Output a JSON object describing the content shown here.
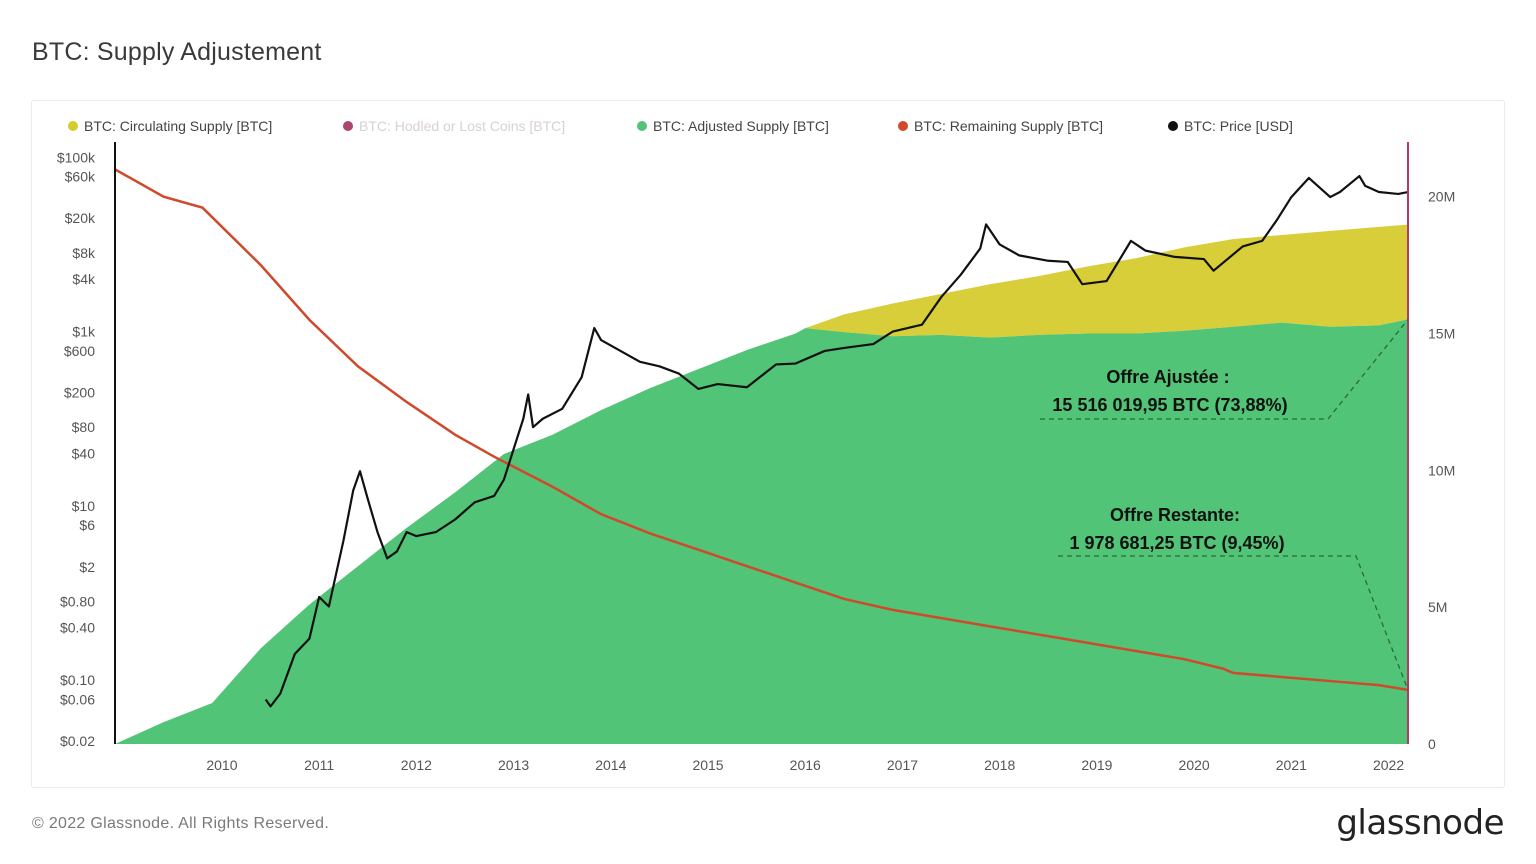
{
  "title": "BTC: Supply Adjustement",
  "footer": {
    "copyright": "© 2022 Glassnode. All Rights Reserved.",
    "logo_text": "glassnode"
  },
  "colors": {
    "circulating": "#d6cb2f",
    "hodled": "#a3325f",
    "adjusted": "#52c477",
    "remaining": "#cf4a2b",
    "price": "#111111",
    "right_axis": "#b23a6c"
  },
  "chart_data": {
    "type": "area",
    "legend_placement": "top",
    "grid": false,
    "legend": [
      {
        "name": "BTC: Circulating Supply [BTC]",
        "color": "#d6cb2f",
        "muted": false
      },
      {
        "name": "BTC: Hodled or Lost Coins [BTC]",
        "color": "#a3325f",
        "muted": true
      },
      {
        "name": "BTC: Adjusted Supply [BTC]",
        "color": "#52c477",
        "muted": false
      },
      {
        "name": "BTC: Remaining Supply [BTC]",
        "color": "#cf4a2b",
        "muted": false
      },
      {
        "name": "BTC: Price [USD]",
        "color": "#111111",
        "muted": false
      }
    ],
    "x_ticks": [
      "2010",
      "2011",
      "2012",
      "2013",
      "2014",
      "2015",
      "2016",
      "2017",
      "2018",
      "2019",
      "2020",
      "2021",
      "2022"
    ],
    "x_range": [
      2009.0,
      2022.3
    ],
    "left_axis": {
      "scale": "log",
      "ticks": [
        {
          "value": 100000,
          "label": "$100k"
        },
        {
          "value": 60000,
          "label": "$60k"
        },
        {
          "value": 20000,
          "label": "$20k"
        },
        {
          "value": 8000,
          "label": "$8k"
        },
        {
          "value": 4000,
          "label": "$4k"
        },
        {
          "value": 1000,
          "label": "$1k"
        },
        {
          "value": 600,
          "label": "$600"
        },
        {
          "value": 200,
          "label": "$200"
        },
        {
          "value": 80,
          "label": "$80"
        },
        {
          "value": 40,
          "label": "$40"
        },
        {
          "value": 10,
          "label": "$10"
        },
        {
          "value": 6,
          "label": "$6"
        },
        {
          "value": 2,
          "label": "$2"
        },
        {
          "value": 0.8,
          "label": "$0.80"
        },
        {
          "value": 0.4,
          "label": "$0.40"
        },
        {
          "value": 0.1,
          "label": "$0.10"
        },
        {
          "value": 0.06,
          "label": "$0.06"
        },
        {
          "value": 0.02,
          "label": "$0.02"
        }
      ]
    },
    "right_axis": {
      "scale": "linear",
      "range": [
        0,
        22000000
      ],
      "ticks": [
        {
          "value": 20000000,
          "label": "20M"
        },
        {
          "value": 15000000,
          "label": "15M"
        },
        {
          "value": 10000000,
          "label": "10M"
        },
        {
          "value": 5000000,
          "label": "5M"
        },
        {
          "value": 0,
          "label": "0"
        }
      ]
    },
    "series": [
      {
        "name": "BTC: Circulating Supply [BTC]",
        "axis": "right",
        "x": [
          2016.1,
          2016.5,
          2017.0,
          2017.5,
          2018.0,
          2018.5,
          2019.0,
          2019.5,
          2020.0,
          2020.5,
          2021.0,
          2021.5,
          2022.0,
          2022.3
        ],
        "values": [
          15200000,
          15700000,
          16100000,
          16450000,
          16800000,
          17100000,
          17450000,
          17750000,
          18150000,
          18450000,
          18600000,
          18750000,
          18900000,
          18980000
        ]
      },
      {
        "name": "BTC: Adjusted Supply [BTC]",
        "axis": "right",
        "x": [
          2009.0,
          2009.5,
          2010.0,
          2010.5,
          2011.0,
          2011.5,
          2012.0,
          2012.5,
          2013.0,
          2013.5,
          2014.0,
          2014.5,
          2015.0,
          2015.5,
          2016.0,
          2016.1,
          2016.5,
          2017.0,
          2017.5,
          2018.0,
          2018.5,
          2019.0,
          2019.5,
          2020.0,
          2020.5,
          2021.0,
          2021.5,
          2022.0,
          2022.3
        ],
        "values": [
          0,
          800000,
          1500000,
          3500000,
          5100000,
          6500000,
          7900000,
          9200000,
          10600000,
          11300000,
          12200000,
          13000000,
          13700000,
          14400000,
          15000000,
          15200000,
          15050000,
          14900000,
          14950000,
          14850000,
          14950000,
          15000000,
          15000000,
          15100000,
          15250000,
          15400000,
          15250000,
          15300000,
          15516020
        ]
      },
      {
        "name": "BTC: Remaining Supply [BTC]",
        "axis": "right",
        "x": [
          2009.0,
          2009.5,
          2009.9,
          2010.5,
          2011.0,
          2011.5,
          2012.0,
          2012.5,
          2012.9,
          2013.5,
          2014.0,
          2014.5,
          2015.0,
          2015.5,
          2016.0,
          2016.5,
          2017.0,
          2017.5,
          2018.0,
          2018.5,
          2019.0,
          2019.5,
          2020.0,
          2020.4,
          2020.5,
          2021.0,
          2021.5,
          2022.0,
          2022.3
        ],
        "values": [
          21000000,
          20000000,
          19600000,
          17500000,
          15500000,
          13800000,
          12500000,
          11300000,
          10500000,
          9400000,
          8400000,
          7700000,
          7100000,
          6500000,
          5900000,
          5300000,
          4900000,
          4600000,
          4300000,
          4000000,
          3700000,
          3400000,
          3100000,
          2750000,
          2600000,
          2450000,
          2300000,
          2150000,
          1978681
        ]
      },
      {
        "name": "BTC: Price [USD]",
        "axis": "left",
        "x": [
          2010.55,
          2010.6,
          2010.7,
          2010.85,
          2011.0,
          2011.1,
          2011.2,
          2011.35,
          2011.45,
          2011.52,
          2011.6,
          2011.7,
          2011.8,
          2011.9,
          2012.0,
          2012.1,
          2012.3,
          2012.5,
          2012.7,
          2012.9,
          2013.0,
          2013.2,
          2013.25,
          2013.3,
          2013.4,
          2013.6,
          2013.8,
          2013.93,
          2014.0,
          2014.2,
          2014.4,
          2014.6,
          2014.8,
          2015.0,
          2015.2,
          2015.5,
          2015.8,
          2016.0,
          2016.3,
          2016.5,
          2016.8,
          2017.0,
          2017.3,
          2017.5,
          2017.7,
          2017.9,
          2017.96,
          2018.1,
          2018.3,
          2018.6,
          2018.8,
          2018.95,
          2019.2,
          2019.45,
          2019.6,
          2019.9,
          2020.2,
          2020.3,
          2020.6,
          2020.8,
          2020.95,
          2021.1,
          2021.28,
          2021.5,
          2021.6,
          2021.8,
          2021.86,
          2022.0,
          2022.2,
          2022.3
        ],
        "values": [
          0.06,
          0.05,
          0.07,
          0.2,
          0.3,
          0.9,
          0.7,
          4,
          15,
          25,
          12,
          5,
          2.5,
          3,
          5,
          4.5,
          5,
          7,
          11,
          13,
          20,
          100,
          190,
          80,
          100,
          130,
          300,
          1100,
          800,
          600,
          450,
          400,
          330,
          220,
          250,
          230,
          420,
          430,
          600,
          650,
          720,
          1000,
          1200,
          2500,
          4500,
          9000,
          17000,
          10000,
          7500,
          6500,
          6300,
          3500,
          3800,
          11000,
          8500,
          7200,
          6800,
          5000,
          9500,
          11000,
          19000,
          35000,
          58000,
          35000,
          40000,
          61000,
          47000,
          40000,
          38000,
          40000
        ]
      }
    ],
    "annotations": [
      {
        "line1": "Offre Ajustée :",
        "line2": "15 516 019,95 BTC (73,88%)"
      },
      {
        "line1": "Offre Restante:",
        "line2": "1 978 681,25 BTC (9,45%)"
      }
    ]
  }
}
